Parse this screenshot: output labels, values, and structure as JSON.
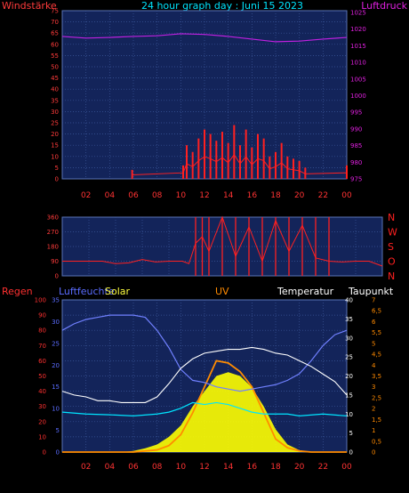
{
  "title": "24 hour graph day : Juni 15 2023",
  "colors": {
    "background": "#000000",
    "plot_bg": "#13245a",
    "grid": "#3b5699",
    "wind_axis": "#ff3b3b",
    "pressure_axis": "#e020e0",
    "dir_axis": "#ff2020",
    "rain_axis": "#ff3030",
    "humidity_axis": "#5a6cff",
    "solar_label": "#ffff40",
    "uv_label": "#ff8a00",
    "temp_label": "#ffffff",
    "dew_label": "#ffffff",
    "solar_fill": "#ffff00",
    "uv_line": "#ff8c00",
    "temp_line": "#ffffff",
    "dew_line": "#00e5ff",
    "humidity_line": "#7080ff"
  },
  "chart_data": [
    {
      "type": "line",
      "name": "wind-pressure",
      "left_label": "Windstärke",
      "right_label": "Luftdruck",
      "left_ticks": [
        "75",
        "70",
        "65",
        "60",
        "55",
        "50",
        "45",
        "40",
        "35",
        "30",
        "25",
        "20",
        "15",
        "10",
        "5",
        "0"
      ],
      "right_ticks": [
        "1025",
        "1020",
        "1015",
        "1010",
        "1005",
        "1000",
        "995",
        "990",
        "985",
        "980",
        "975"
      ],
      "x_ticks": [
        "02",
        "04",
        "06",
        "08",
        "10",
        "12",
        "14",
        "16",
        "18",
        "20",
        "22",
        "00"
      ],
      "ylim_left": [
        0,
        75
      ],
      "ylim_right": [
        975,
        1025
      ],
      "series": [
        {
          "name": "Luftdruck",
          "x": [
            0,
            2,
            4,
            6,
            8,
            10,
            12,
            14,
            16,
            18,
            20,
            22,
            24
          ],
          "values": [
            1017.8,
            1017.3,
            1017.5,
            1017.8,
            1018.0,
            1018.6,
            1018.4,
            1017.8,
            1017.0,
            1016.2,
            1016.4,
            1017.0,
            1017.5
          ]
        },
        {
          "name": "Windstärke",
          "x": [
            5.9,
            10.2,
            10.5,
            11,
            11.5,
            12,
            12.5,
            13,
            13.5,
            14,
            14.5,
            15,
            15.5,
            16,
            16.5,
            17,
            17.5,
            18,
            18.5,
            19,
            19.5,
            20,
            20.5,
            24
          ],
          "values": [
            4,
            6,
            15,
            12,
            18,
            22,
            20,
            17,
            21,
            16,
            24,
            15,
            22,
            14,
            20,
            18,
            10,
            12,
            16,
            10,
            9,
            8,
            5,
            6
          ]
        }
      ]
    },
    {
      "type": "line",
      "name": "wind-direction",
      "left_ticks": [
        "360",
        "270",
        "180",
        "90",
        "0"
      ],
      "right_ticks": [
        "N",
        "W",
        "S",
        "O",
        "N"
      ],
      "ylim": [
        0,
        360
      ],
      "series": [
        {
          "name": "Windrichtung",
          "x": [
            0,
            2,
            3,
            4,
            5,
            6,
            7,
            8,
            9,
            9.5,
            10,
            10.5,
            11,
            12,
            13,
            14,
            15,
            16,
            17,
            18,
            19,
            20,
            21,
            22,
            23,
            24
          ],
          "values": [
            90,
            90,
            90,
            75,
            80,
            100,
            85,
            90,
            90,
            75,
            200,
            240,
            150,
            360,
            120,
            300,
            90,
            340,
            150,
            310,
            110,
            90,
            85,
            90,
            90,
            60
          ]
        }
      ]
    },
    {
      "type": "line",
      "name": "weather",
      "left_label": "Regen",
      "humidity_label": "Luftfeuchte",
      "solar_label": "Solar",
      "uv_label": "UV",
      "temp_label": "Temperatur",
      "dew_label": "Taupunkt",
      "rain_ticks": [
        "100",
        "90",
        "80",
        "70",
        "60",
        "50",
        "40",
        "30",
        "20",
        "10",
        "0"
      ],
      "humidity_ticks": [
        "35",
        "30",
        "25",
        "20",
        "15",
        "10",
        "5",
        "0"
      ],
      "temp_ticks": [
        "40",
        "35",
        "30",
        "25",
        "20",
        "15",
        "10",
        "5",
        "0"
      ],
      "uv_ticks": [
        "7",
        "6,5",
        "6",
        "5,5",
        "5",
        "4,5",
        "4",
        "3,5",
        "3",
        "2,5",
        "2",
        "1,5",
        "1",
        "0,5",
        "0"
      ],
      "series": [
        {
          "name": "Luftfeuchte",
          "x": [
            0,
            1,
            2,
            3,
            4,
            5,
            6,
            7,
            8,
            9,
            10,
            11,
            12,
            13,
            14,
            15,
            16,
            17,
            18,
            19,
            20,
            21,
            22,
            23,
            24
          ],
          "values": [
            28,
            29.5,
            30.5,
            31,
            31.5,
            31.5,
            31.5,
            31,
            28,
            24,
            19,
            16.5,
            16,
            15,
            14.5,
            14,
            14.5,
            15,
            15.5,
            16.5,
            18,
            21,
            24.5,
            27,
            28
          ]
        },
        {
          "name": "Temperatur",
          "x": [
            0,
            1,
            2,
            3,
            4,
            5,
            6,
            7,
            8,
            9,
            10,
            11,
            12,
            13,
            14,
            15,
            16,
            17,
            18,
            19,
            20,
            21,
            22,
            23,
            24
          ],
          "values": [
            16,
            15,
            14.5,
            13.5,
            13.5,
            13,
            13,
            13,
            14.5,
            18,
            22,
            24.5,
            26,
            26.5,
            27,
            27,
            27.5,
            27,
            26,
            25.5,
            24,
            22.5,
            20.5,
            18.5,
            15
          ]
        },
        {
          "name": "Taupunkt",
          "x": [
            0,
            2,
            4,
            6,
            8,
            9,
            10,
            11,
            12,
            13,
            14,
            15,
            16,
            17,
            18,
            19,
            20,
            22,
            24
          ],
          "values": [
            10.5,
            10,
            9.8,
            9.5,
            10,
            10.5,
            11.5,
            13,
            12.5,
            13,
            12.5,
            11.5,
            10.5,
            10,
            10,
            10,
            9.5,
            10,
            9.5
          ]
        },
        {
          "name": "Solar",
          "x": [
            0,
            5,
            6,
            7,
            8,
            9,
            10,
            11,
            12,
            13,
            14,
            15,
            16,
            17,
            18,
            19,
            20,
            21,
            24
          ],
          "values": [
            0,
            0,
            0.3,
            1,
            2,
            4,
            7,
            12,
            16,
            20,
            21,
            20,
            17,
            12,
            6,
            2,
            0.5,
            0,
            0
          ]
        },
        {
          "name": "UV",
          "x": [
            0,
            6,
            8,
            9,
            10,
            11,
            12,
            13,
            14,
            15,
            16,
            17,
            18,
            19,
            20,
            21,
            24
          ],
          "values": [
            0,
            0,
            0.1,
            0.3,
            0.8,
            1.8,
            3,
            4.2,
            4.1,
            3.7,
            3,
            1.8,
            0.6,
            0.2,
            0.05,
            0,
            0
          ]
        }
      ]
    }
  ]
}
